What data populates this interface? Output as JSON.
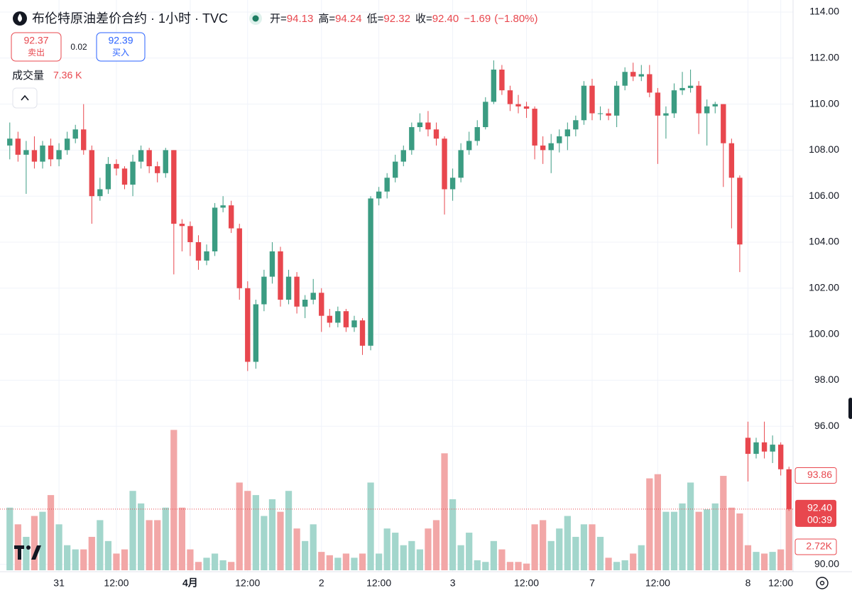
{
  "chart_data": {
    "type": "candlestick",
    "title": "布伦特原油差价合约 · 1小时 · TVC",
    "ohlc": [
      {
        "label": "开=",
        "value": 94.13
      },
      {
        "label": "高=",
        "value": 94.24
      },
      {
        "label": "低=",
        "value": 92.32
      },
      {
        "label": "收=",
        "value": 92.4
      }
    ],
    "change": "−1.69",
    "change_pct": "(−1.80%)",
    "sell": {
      "price": 92.37,
      "label": "卖出"
    },
    "spread": 0.02,
    "buy": {
      "price": 92.39,
      "label": "买入"
    },
    "volume_title": "成交量",
    "volume_value": "7.36 K",
    "up_color": "#3b9c82",
    "down_color": "#e8474e",
    "up_volume_color": "#a3d6cc",
    "down_volume_color": "#f2a7a7",
    "ylim": [
      90,
      114
    ],
    "yticks": [
      {
        "value": 114,
        "label": "114.00"
      },
      {
        "value": 112,
        "label": "112.00"
      },
      {
        "value": 110,
        "label": "110.00"
      },
      {
        "value": 108,
        "label": "108.00"
      },
      {
        "value": 106,
        "label": "106.00"
      },
      {
        "value": 104,
        "label": "104.00"
      },
      {
        "value": 102,
        "label": "102.00"
      },
      {
        "value": 100,
        "label": "100.00"
      },
      {
        "value": 98,
        "label": "98.00"
      },
      {
        "value": 96,
        "label": "96.00"
      },
      {
        "value": 90,
        "label": "90.00"
      }
    ],
    "grid": true,
    "vlim": [
      0,
      17
    ],
    "price_marker": {
      "value": 93.86,
      "label": "93.86"
    },
    "last_price": {
      "value": 92.4,
      "label": "92.40",
      "countdown": "00:39"
    },
    "volume_marker": {
      "value": 2.72,
      "label": "2.72K"
    },
    "categories": [
      null,
      null,
      null,
      null,
      null,
      null,
      "31",
      null,
      null,
      null,
      null,
      null,
      null,
      "12:00",
      null,
      null,
      null,
      null,
      null,
      null,
      null,
      null,
      "4月",
      null,
      null,
      null,
      null,
      null,
      null,
      "12:00",
      null,
      null,
      null,
      null,
      null,
      null,
      null,
      null,
      "2",
      null,
      null,
      null,
      null,
      null,
      null,
      "12:00",
      null,
      null,
      null,
      null,
      null,
      null,
      null,
      null,
      "3",
      null,
      null,
      null,
      null,
      null,
      null,
      null,
      null,
      "12:00",
      null,
      null,
      null,
      null,
      null,
      null,
      null,
      "7",
      null,
      null,
      null,
      null,
      null,
      null,
      null,
      "12:00",
      null,
      null,
      null,
      null,
      null,
      null,
      null,
      null,
      null,
      null,
      "8",
      null,
      null,
      null,
      "12:00",
      null
    ],
    "candles": [
      [
        108.2,
        109.2,
        107.6,
        108.5,
        7.5
      ],
      [
        108.5,
        108.8,
        107.5,
        107.8,
        5.5
      ],
      [
        107.8,
        108.4,
        106.1,
        108,
        4
      ],
      [
        108,
        108.6,
        107.2,
        107.5,
        6.5
      ],
      [
        107.5,
        108.4,
        107.2,
        108.2,
        7
      ],
      [
        108.2,
        108.5,
        107.3,
        107.6,
        9
      ],
      [
        107.6,
        108.3,
        107.3,
        108,
        5.5
      ],
      [
        108,
        108.8,
        107.8,
        108.5,
        3
      ],
      [
        108.5,
        109.1,
        108.3,
        108.9,
        2.5
      ],
      [
        108.9,
        110,
        107.8,
        108,
        2.5
      ],
      [
        108,
        108.2,
        104.8,
        106,
        4
      ],
      [
        106,
        106.8,
        105.8,
        106.3,
        6
      ],
      [
        106.3,
        107.7,
        106.1,
        107.4,
        3.5
      ],
      [
        107.4,
        107.6,
        106.9,
        107.2,
        2
      ],
      [
        107.2,
        107.3,
        106.3,
        106.5,
        2.5
      ],
      [
        106.5,
        107.8,
        106,
        107.5,
        9.5
      ],
      [
        107.5,
        108.2,
        107.2,
        108,
        8
      ],
      [
        108,
        108.1,
        107,
        107.3,
        6
      ],
      [
        107.3,
        107.5,
        106.6,
        107,
        6
      ],
      [
        107,
        108.1,
        106.8,
        108,
        7.5
      ],
      [
        108,
        108,
        102.6,
        104.8,
        16.8
      ],
      [
        104.8,
        105,
        103.6,
        104.7,
        7.5
      ],
      [
        104.7,
        104.9,
        103.4,
        104,
        2.5
      ],
      [
        104,
        104.3,
        102.8,
        103.2,
        1
      ],
      [
        103.2,
        103.9,
        103,
        103.6,
        1.5
      ],
      [
        103.6,
        105.7,
        103.4,
        105.5,
        2
      ],
      [
        105.5,
        106,
        105.3,
        105.6,
        1.2
      ],
      [
        105.6,
        105.8,
        104.4,
        104.6,
        1
      ],
      [
        104.6,
        104.8,
        101.5,
        102,
        10.5
      ],
      [
        102,
        102.3,
        98.4,
        98.8,
        9.5
      ],
      [
        98.8,
        101.5,
        98.5,
        101.3,
        9
      ],
      [
        101.3,
        102.8,
        101,
        102.5,
        6.5
      ],
      [
        102.5,
        104,
        102.2,
        103.6,
        8.5
      ],
      [
        103.6,
        103.8,
        101.2,
        101.5,
        7
      ],
      [
        101.5,
        102.8,
        101.3,
        102.5,
        9.5
      ],
      [
        102.5,
        102.7,
        100.9,
        101.2,
        5
      ],
      [
        101.2,
        101.7,
        100.7,
        101.5,
        3.5
      ],
      [
        101.5,
        102.4,
        101.3,
        101.8,
        5.5
      ],
      [
        101.8,
        102,
        100.1,
        100.8,
        2.2
      ],
      [
        100.8,
        101.1,
        100.3,
        100.5,
        1.8
      ],
      [
        100.5,
        101.2,
        100.3,
        101,
        1.5
      ],
      [
        101,
        101.1,
        100.1,
        100.3,
        2
      ],
      [
        100.3,
        100.8,
        100.1,
        100.6,
        1.5
      ],
      [
        100.6,
        100.7,
        99.1,
        99.5,
        2
      ],
      [
        99.5,
        106,
        99.3,
        105.9,
        10.5
      ],
      [
        105.9,
        106.4,
        105.6,
        106.2,
        2
      ],
      [
        106.2,
        107,
        105.9,
        106.8,
        5
      ],
      [
        106.8,
        107.8,
        106.6,
        107.5,
        4.5
      ],
      [
        107.5,
        108.2,
        107.3,
        108,
        3
      ],
      [
        108,
        109.2,
        107.8,
        109,
        3.5
      ],
      [
        109,
        109.6,
        108.8,
        109.2,
        2.5
      ],
      [
        109.2,
        109.7,
        108.6,
        108.9,
        5
      ],
      [
        108.9,
        109.2,
        108.2,
        108.5,
        6
      ],
      [
        108.5,
        108.6,
        105.2,
        106.3,
        14
      ],
      [
        106.3,
        107.2,
        105.8,
        106.8,
        8.5
      ],
      [
        106.8,
        108.3,
        106.6,
        108,
        3
      ],
      [
        108,
        108.8,
        107.8,
        108.4,
        4.5
      ],
      [
        108.4,
        109.3,
        108.2,
        109,
        1.2
      ],
      [
        109,
        110.3,
        108.9,
        110.1,
        1
      ],
      [
        110.1,
        111.9,
        110,
        111.5,
        3.5
      ],
      [
        111.5,
        111.7,
        110.4,
        110.6,
        2.5
      ],
      [
        110.6,
        110.8,
        109.7,
        110,
        1
      ],
      [
        110,
        110.4,
        109.6,
        109.9,
        1
      ],
      [
        109.9,
        110.1,
        109.4,
        109.8,
        0.8
      ],
      [
        109.8,
        109.9,
        107.6,
        108.2,
        5.5
      ],
      [
        108.2,
        108.6,
        107.4,
        108,
        6
      ],
      [
        108,
        108.7,
        107,
        108.3,
        3.5
      ],
      [
        108.3,
        108.9,
        107.9,
        108.6,
        5
      ],
      [
        108.6,
        109.2,
        108,
        108.9,
        6.5
      ],
      [
        108.9,
        109.5,
        108.6,
        109.3,
        4
      ],
      [
        109.3,
        111,
        109.1,
        110.8,
        5.5
      ],
      [
        110.8,
        111.1,
        109.3,
        109.6,
        5.5
      ],
      [
        109.6,
        109.9,
        109.3,
        109.6,
        4
      ],
      [
        109.6,
        109.8,
        109.3,
        109.5,
        1.5
      ],
      [
        109.5,
        111,
        109,
        110.8,
        1
      ],
      [
        110.8,
        111.6,
        110.6,
        111.4,
        1.2
      ],
      [
        111.4,
        111.8,
        111,
        111.2,
        2
      ],
      [
        111.2,
        111.7,
        111,
        111.3,
        3
      ],
      [
        111.3,
        111.7,
        110.3,
        110.5,
        11
      ],
      [
        110.5,
        110.7,
        107.4,
        109.5,
        11.5
      ],
      [
        109.5,
        109.9,
        108.5,
        109.6,
        7
      ],
      [
        109.6,
        110.9,
        109.4,
        110.6,
        7
      ],
      [
        110.6,
        111.4,
        110.4,
        110.7,
        8
      ],
      [
        110.7,
        111.5,
        110.5,
        110.8,
        10.5
      ],
      [
        110.8,
        111,
        108.7,
        109.6,
        7
      ],
      [
        109.6,
        110.2,
        108.2,
        109.9,
        7.3
      ],
      [
        109.9,
        110.1,
        109.6,
        110,
        8
      ],
      [
        110,
        110,
        106.4,
        108.3,
        11.3
      ],
      [
        108.3,
        108.5,
        104.6,
        106.8,
        7.5
      ],
      [
        106.8,
        106.9,
        102.7,
        103.9,
        6.8
      ],
      [
        95.5,
        96.2,
        93.6,
        94.8,
        3
      ],
      [
        94.8,
        95.5,
        94.6,
        95.3,
        2.2
      ],
      [
        95.3,
        96.2,
        94.6,
        94.9,
        2
      ],
      [
        94.9,
        95.6,
        94.4,
        95.2,
        2.2
      ],
      [
        95.2,
        95.3,
        93.86,
        94.13,
        2.5
      ],
      [
        94.13,
        94.24,
        92.32,
        92.4,
        7.36
      ]
    ]
  }
}
